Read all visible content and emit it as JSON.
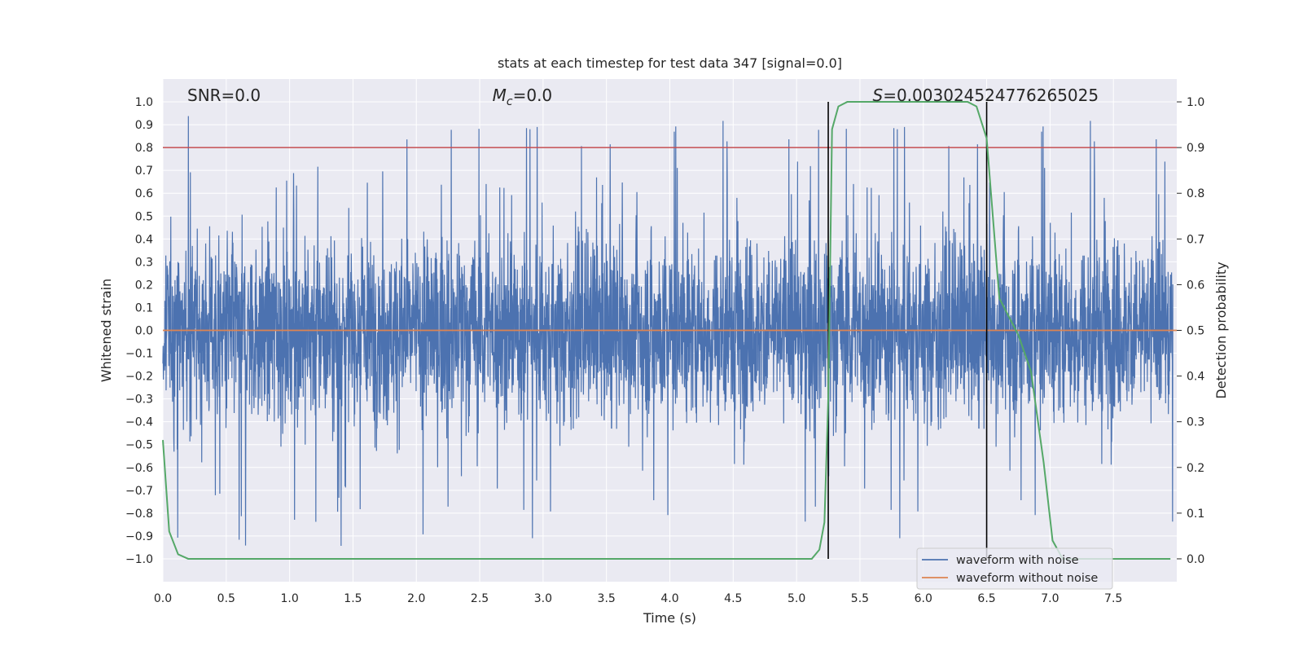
{
  "chart_data": {
    "type": "line",
    "title": "stats at each timestep for test data 347 [signal=0.0]",
    "xlabel": "Time (s)",
    "ylabel": "Whitened strain",
    "y2label": "Detection probability",
    "xlim": [
      0.0,
      8.0
    ],
    "ylim": [
      -1.1,
      1.1
    ],
    "y2lim": [
      -0.05,
      1.05
    ],
    "xticks": [
      "0.0",
      "0.5",
      "1.0",
      "1.5",
      "2.0",
      "2.5",
      "3.0",
      "3.5",
      "4.0",
      "4.5",
      "5.0",
      "5.5",
      "6.0",
      "6.5",
      "7.0",
      "7.5"
    ],
    "xtick_values": [
      0.0,
      0.5,
      1.0,
      1.5,
      2.0,
      2.5,
      3.0,
      3.5,
      4.0,
      4.5,
      5.0,
      5.5,
      6.0,
      6.5,
      7.0,
      7.5
    ],
    "yticks": [
      "1.0",
      "0.9",
      "0.8",
      "0.7",
      "0.6",
      "0.5",
      "0.4",
      "0.3",
      "0.2",
      "0.1",
      "0.0",
      "−0.1",
      "−0.2",
      "−0.3",
      "−0.4",
      "−0.5",
      "−0.6",
      "−0.7",
      "−0.8",
      "−0.9",
      "−1.0"
    ],
    "ytick_values": [
      1.0,
      0.9,
      0.8,
      0.7,
      0.6,
      0.5,
      0.4,
      0.3,
      0.2,
      0.1,
      0.0,
      -0.1,
      -0.2,
      -0.3,
      -0.4,
      -0.5,
      -0.6,
      -0.7,
      -0.8,
      -0.9,
      -1.0
    ],
    "y2ticks": [
      "1.0",
      "0.9",
      "0.8",
      "0.7",
      "0.6",
      "0.5",
      "0.4",
      "0.3",
      "0.2",
      "0.1",
      "0.0"
    ],
    "y2tick_values": [
      1.0,
      0.9,
      0.8,
      0.7,
      0.6,
      0.5,
      0.4,
      0.3,
      0.2,
      0.1,
      0.0
    ],
    "annotations": {
      "snr": "SNR=0.0",
      "mc_symbol": "M",
      "mc_sub": "c",
      "mc_value": "=0.0",
      "s_symbol": "S",
      "s_value": "=0.003024524776265025"
    },
    "threshold_line": {
      "y2": 0.9,
      "color": "#c44e52"
    },
    "vertical_lines": [
      5.25,
      6.5
    ],
    "series": [
      {
        "name": "waveform with noise",
        "color": "#4c72b0",
        "amplitude_range": [
          -1.0,
          0.94
        ],
        "samples_per_second": 512
      },
      {
        "name": "waveform without noise",
        "color": "#dd8452",
        "value": 0.0
      },
      {
        "name": "detection probability",
        "color": "#55a868",
        "axis": "right",
        "x": [
          0.0,
          0.05,
          0.12,
          0.2,
          0.35,
          5.0,
          5.12,
          5.18,
          5.22,
          5.25,
          5.28,
          5.33,
          5.4,
          6.35,
          6.42,
          6.5,
          6.6,
          6.75,
          6.85,
          6.95,
          7.02,
          7.1,
          7.95
        ],
        "y": [
          0.26,
          0.06,
          0.01,
          0.0,
          0.0,
          0.0,
          0.0,
          0.02,
          0.08,
          0.35,
          0.94,
          0.99,
          1.0,
          1.0,
          0.99,
          0.92,
          0.57,
          0.49,
          0.41,
          0.21,
          0.04,
          0.0,
          0.0
        ]
      }
    ],
    "legend": [
      "waveform with noise",
      "waveform without noise"
    ],
    "legend_position": "lower-right",
    "grid": true
  }
}
